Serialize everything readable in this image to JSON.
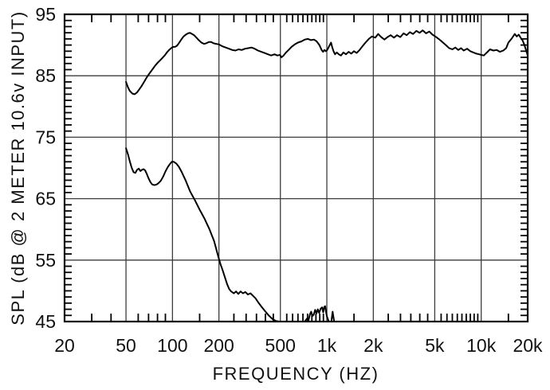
{
  "figure": {
    "background": "#ffffff"
  },
  "chart_data": {
    "type": "line",
    "title": "",
    "xlabel": "FREQUENCY  (HZ)",
    "ylabel": "SPL (dB @ 2 METER 10.6v  INPUT)",
    "x_scale": "log",
    "xlim": [
      20,
      20000
    ],
    "ylim": [
      45,
      95
    ],
    "grid": true,
    "legend": "none",
    "colors": {
      "curve": "#000000",
      "grid": "#3c3c3c",
      "spine": "#000000",
      "text": "#111111"
    },
    "x_tick_labels": [
      {
        "label": "20",
        "value": 20
      },
      {
        "label": "50",
        "value": 50
      },
      {
        "label": "100",
        "value": 100
      },
      {
        "label": "200",
        "value": 200
      },
      {
        "label": "500",
        "value": 500
      },
      {
        "label": "1k",
        "value": 1000
      },
      {
        "label": "2k",
        "value": 2000
      },
      {
        "label": "5k",
        "value": 5000
      },
      {
        "label": "10k",
        "value": 10000
      },
      {
        "label": "20k",
        "value": 20000
      }
    ],
    "x_major_gridlines": [
      50,
      100,
      200,
      500,
      1000,
      2000,
      5000,
      10000
    ],
    "x_minor_ticks": [
      30,
      40,
      60,
      70,
      80,
      90,
      150,
      250,
      300,
      350,
      400,
      450,
      550,
      600,
      650,
      700,
      750,
      800,
      850,
      900,
      950,
      1500,
      2500,
      3000,
      3500,
      4000,
      4500,
      5500,
      6000,
      6500,
      7000,
      7500,
      8000,
      8500,
      9000,
      9500,
      15000
    ],
    "y_tick_labels": [
      {
        "label": "45",
        "value": 45
      },
      {
        "label": "55",
        "value": 55
      },
      {
        "label": "65",
        "value": 65
      },
      {
        "label": "75",
        "value": 75
      },
      {
        "label": "85",
        "value": 85
      },
      {
        "label": "95",
        "value": 95
      }
    ],
    "y_major_gridlines": [
      55,
      65,
      75,
      85
    ],
    "y_minor_tick_step": 1,
    "series": [
      {
        "name": "upper trace (frequency response, dB SPL)",
        "points": [
          [
            50,
            84.0
          ],
          [
            51.5,
            83.1
          ],
          [
            53,
            82.5
          ],
          [
            55,
            82.1
          ],
          [
            57,
            82.0
          ],
          [
            59,
            82.3
          ],
          [
            61,
            82.8
          ],
          [
            63,
            83.3
          ],
          [
            65.5,
            84.0
          ],
          [
            68,
            84.7
          ],
          [
            71,
            85.4
          ],
          [
            74,
            86.0
          ],
          [
            77,
            86.6
          ],
          [
            80,
            87.1
          ],
          [
            83,
            87.5
          ],
          [
            86,
            87.9
          ],
          [
            89,
            88.3
          ],
          [
            92,
            88.8
          ],
          [
            95,
            89.2
          ],
          [
            98,
            89.5
          ],
          [
            101,
            89.7
          ],
          [
            104,
            89.7
          ],
          [
            107,
            89.9
          ],
          [
            110,
            90.3
          ],
          [
            114,
            90.9
          ],
          [
            118,
            91.4
          ],
          [
            122,
            91.7
          ],
          [
            126,
            91.9
          ],
          [
            130,
            92.0
          ],
          [
            134,
            91.8
          ],
          [
            138,
            91.6
          ],
          [
            143,
            91.2
          ],
          [
            148,
            90.8
          ],
          [
            154,
            90.4
          ],
          [
            160,
            90.2
          ],
          [
            166,
            90.3
          ],
          [
            172,
            90.5
          ],
          [
            178,
            90.5
          ],
          [
            184,
            90.3
          ],
          [
            192,
            90.2
          ],
          [
            200,
            90.1
          ],
          [
            210,
            89.8
          ],
          [
            221,
            89.6
          ],
          [
            232,
            89.4
          ],
          [
            244,
            89.2
          ],
          [
            256,
            89.1
          ],
          [
            268,
            89.3
          ],
          [
            281,
            89.2
          ],
          [
            295,
            89.4
          ],
          [
            310,
            89.5
          ],
          [
            325,
            89.6
          ],
          [
            341,
            89.4
          ],
          [
            358,
            89.1
          ],
          [
            376,
            88.9
          ],
          [
            395,
            88.7
          ],
          [
            415,
            88.5
          ],
          [
            436,
            88.3
          ],
          [
            458,
            88.5
          ],
          [
            478,
            88.3
          ],
          [
            497,
            88.4
          ],
          [
            508,
            88.0
          ],
          [
            525,
            88.3
          ],
          [
            540,
            88.7
          ],
          [
            565,
            89.2
          ],
          [
            590,
            89.7
          ],
          [
            620,
            90.1
          ],
          [
            650,
            90.4
          ],
          [
            685,
            90.6
          ],
          [
            720,
            90.9
          ],
          [
            755,
            91.0
          ],
          [
            790,
            90.8
          ],
          [
            825,
            90.9
          ],
          [
            860,
            90.6
          ],
          [
            895,
            90.0
          ],
          [
            925,
            89.2
          ],
          [
            945,
            88.9
          ],
          [
            965,
            89.2
          ],
          [
            985,
            89.0
          ],
          [
            1005,
            89.2
          ],
          [
            1025,
            89.6
          ],
          [
            1045,
            90.0
          ],
          [
            1065,
            90.4
          ],
          [
            1085,
            89.6
          ],
          [
            1105,
            89.0
          ],
          [
            1130,
            88.5
          ],
          [
            1160,
            88.8
          ],
          [
            1195,
            88.5
          ],
          [
            1235,
            88.3
          ],
          [
            1280,
            88.8
          ],
          [
            1330,
            88.5
          ],
          [
            1385,
            88.9
          ],
          [
            1440,
            88.6
          ],
          [
            1500,
            89.0
          ],
          [
            1560,
            88.7
          ],
          [
            1630,
            89.2
          ],
          [
            1700,
            89.8
          ],
          [
            1780,
            90.4
          ],
          [
            1870,
            91.0
          ],
          [
            1960,
            91.4
          ],
          [
            2060,
            91.2
          ],
          [
            2150,
            91.8
          ],
          [
            2250,
            91.3
          ],
          [
            2360,
            90.9
          ],
          [
            2470,
            91.3
          ],
          [
            2590,
            91.6
          ],
          [
            2720,
            91.2
          ],
          [
            2850,
            91.6
          ],
          [
            2990,
            91.3
          ],
          [
            3140,
            91.9
          ],
          [
            3290,
            91.6
          ],
          [
            3450,
            92.1
          ],
          [
            3620,
            91.8
          ],
          [
            3800,
            92.3
          ],
          [
            3990,
            92.0
          ],
          [
            4180,
            92.4
          ],
          [
            4390,
            91.9
          ],
          [
            4610,
            92.2
          ],
          [
            4830,
            91.7
          ],
          [
            5050,
            91.4
          ],
          [
            5300,
            91.0
          ],
          [
            5600,
            90.5
          ],
          [
            5900,
            90.0
          ],
          [
            6200,
            89.5
          ],
          [
            6500,
            89.3
          ],
          [
            6800,
            89.6
          ],
          [
            7100,
            89.2
          ],
          [
            7400,
            89.5
          ],
          [
            7700,
            89.1
          ],
          [
            8100,
            89.4
          ],
          [
            8500,
            89.0
          ],
          [
            8900,
            88.8
          ],
          [
            9300,
            88.6
          ],
          [
            9700,
            88.5
          ],
          [
            10000,
            88.4
          ],
          [
            10400,
            88.3
          ],
          [
            10900,
            88.8
          ],
          [
            11400,
            89.3
          ],
          [
            12000,
            89.1
          ],
          [
            12600,
            89.2
          ],
          [
            13200,
            88.9
          ],
          [
            13900,
            89.1
          ],
          [
            14500,
            89.5
          ],
          [
            15000,
            90.4
          ],
          [
            15800,
            91.1
          ],
          [
            16500,
            91.8
          ],
          [
            17000,
            91.4
          ],
          [
            17500,
            91.7
          ],
          [
            18000,
            91.2
          ],
          [
            18500,
            90.8
          ],
          [
            19000,
            90.1
          ],
          [
            19500,
            89.2
          ],
          [
            20000,
            88.3
          ]
        ]
      },
      {
        "name": "lower trace (low-level curve)",
        "segments": [
          [
            [
              50,
              73.2
            ],
            [
              51.5,
              72.2
            ],
            [
              53,
              71.0
            ],
            [
              54.5,
              70.0
            ],
            [
              56,
              69.3
            ],
            [
              57.5,
              69.2
            ],
            [
              59,
              69.7
            ],
            [
              60.5,
              69.9
            ],
            [
              62,
              69.5
            ],
            [
              63.5,
              69.7
            ],
            [
              65,
              69.8
            ],
            [
              66.5,
              69.6
            ],
            [
              68,
              69.1
            ],
            [
              70,
              68.3
            ],
            [
              72,
              67.7
            ],
            [
              74,
              67.3
            ],
            [
              76.5,
              67.2
            ],
            [
              79,
              67.3
            ],
            [
              81,
              67.5
            ],
            [
              84,
              67.9
            ],
            [
              87,
              68.6
            ],
            [
              90,
              69.4
            ],
            [
              93,
              70.1
            ],
            [
              96,
              70.6
            ],
            [
              99,
              71.0
            ],
            [
              102,
              71.0
            ],
            [
              106,
              70.7
            ],
            [
              110,
              70.2
            ],
            [
              115,
              69.3
            ],
            [
              122,
              67.9
            ],
            [
              130,
              66.2
            ],
            [
              140,
              64.7
            ],
            [
              150,
              63.2
            ],
            [
              161,
              61.8
            ],
            [
              173,
              60.1
            ],
            [
              186,
              58.1
            ],
            [
              193,
              56.6
            ],
            [
              199,
              55.4
            ],
            [
              205,
              54.3
            ],
            [
              211,
              53.4
            ],
            [
              218,
              52.3
            ],
            [
              226,
              51.1
            ],
            [
              233,
              50.3
            ],
            [
              240,
              49.9
            ],
            [
              250,
              49.6
            ],
            [
              258,
              49.9
            ],
            [
              267,
              49.5
            ],
            [
              276,
              49.9
            ],
            [
              286,
              49.6
            ],
            [
              297,
              49.8
            ],
            [
              308,
              49.4
            ],
            [
              320,
              49.6
            ],
            [
              332,
              49.2
            ],
            [
              345,
              48.8
            ],
            [
              360,
              48.1
            ],
            [
              378,
              47.4
            ],
            [
              398,
              46.7
            ],
            [
              420,
              46.0
            ],
            [
              445,
              45.4
            ],
            [
              468,
              45.1
            ],
            [
              490,
              45.0
            ]
          ],
          [
            [
              720,
              45.0
            ],
            [
              745,
              45.5
            ],
            [
              760,
              45.2
            ],
            [
              778,
              46.2
            ],
            [
              792,
              46.6
            ],
            [
              806,
              45.9
            ],
            [
              822,
              46.1
            ],
            [
              840,
              46.9
            ],
            [
              856,
              46.3
            ],
            [
              874,
              47.0
            ],
            [
              892,
              46.4
            ],
            [
              912,
              47.1
            ],
            [
              932,
              47.3
            ],
            [
              948,
              46.5
            ],
            [
              962,
              47.4
            ],
            [
              975,
              47.5
            ],
            [
              988,
              46.6
            ],
            [
              1000,
              45.9
            ],
            [
              1015,
              45.4
            ],
            [
              1030,
              45.0
            ]
          ],
          [
            [
              1070,
              45.0
            ],
            [
              1090,
              46.6
            ],
            [
              1115,
              45.0
            ]
          ]
        ]
      }
    ]
  }
}
